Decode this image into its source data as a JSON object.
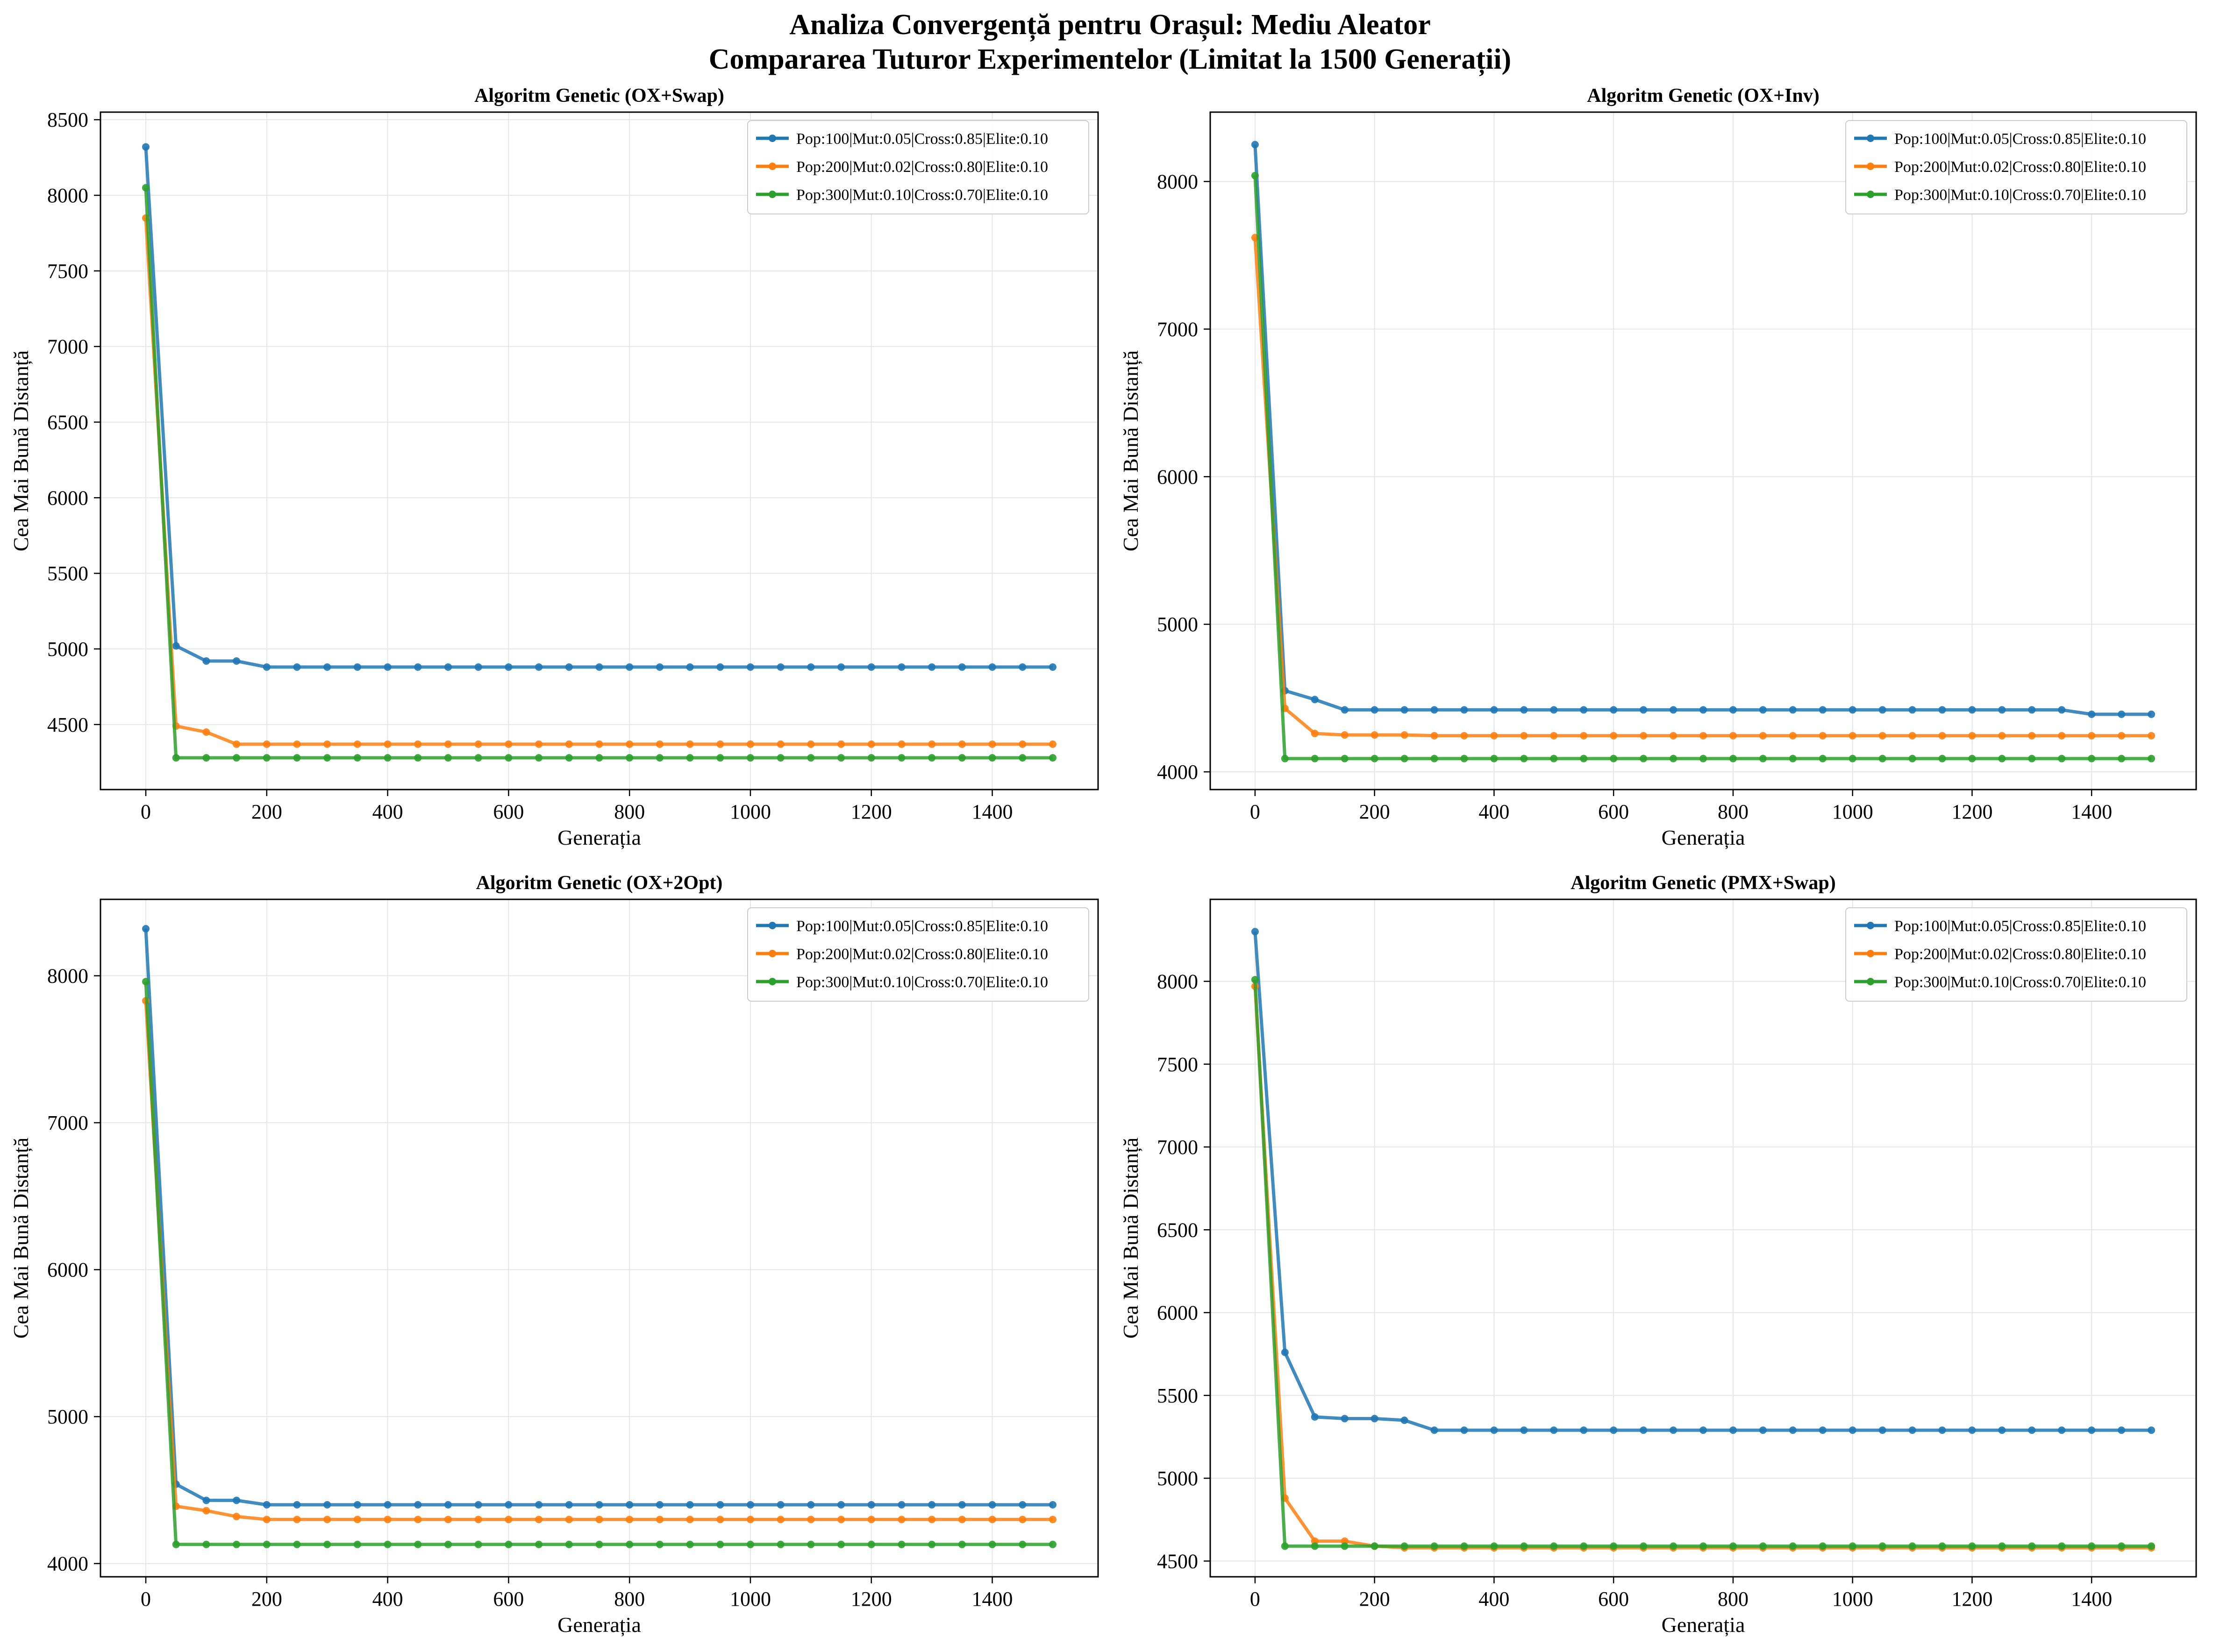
{
  "figure": {
    "title_line1": "Analiza Convergență pentru Orașul: Mediu Aleator",
    "title_line2": "Compararea Tuturor Experimentelor (Limitat la 1500 Generații)"
  },
  "colors": {
    "series": [
      "#1f77b4",
      "#ff7f0e",
      "#2ca02c"
    ],
    "grid": "#e6e6e6",
    "axes": "#000000"
  },
  "chart_data": [
    {
      "type": "line",
      "title": "Algoritm Genetic (OX+Swap)",
      "xlabel": "Generația",
      "ylabel": "Cea Mai Bună Distanță",
      "xlim": [
        -75,
        1575
      ],
      "ylim": [
        4070,
        8550
      ],
      "xticks": [
        0,
        200,
        400,
        600,
        800,
        1000,
        1200,
        1400
      ],
      "yticks": [
        4500,
        5000,
        5500,
        6000,
        6500,
        7000,
        7500,
        8000,
        8500
      ],
      "grid": true,
      "legend_position": "top-right",
      "x": [
        0,
        50,
        100,
        150,
        200,
        250,
        300,
        350,
        400,
        450,
        500,
        550,
        600,
        650,
        700,
        750,
        800,
        850,
        900,
        950,
        1000,
        1050,
        1100,
        1150,
        1200,
        1250,
        1300,
        1350,
        1400,
        1450,
        1500
      ],
      "series": [
        {
          "name": "Pop:100|Mut:0.05|Cross:0.85|Elite:0.10",
          "values": [
            8320,
            5020,
            4920,
            4920,
            4880,
            4880,
            4880,
            4880,
            4880,
            4880,
            4880,
            4880,
            4880,
            4880,
            4880,
            4880,
            4880,
            4880,
            4880,
            4880,
            4880,
            4880,
            4880,
            4880,
            4880,
            4880,
            4880,
            4880,
            4880,
            4880,
            4880
          ]
        },
        {
          "name": "Pop:200|Mut:0.02|Cross:0.80|Elite:0.10",
          "values": [
            7850,
            4490,
            4450,
            4370,
            4370,
            4370,
            4370,
            4370,
            4370,
            4370,
            4370,
            4370,
            4370,
            4370,
            4370,
            4370,
            4370,
            4370,
            4370,
            4370,
            4370,
            4370,
            4370,
            4370,
            4370,
            4370,
            4370,
            4370,
            4370,
            4370,
            4370
          ]
        },
        {
          "name": "Pop:300|Mut:0.10|Cross:0.70|Elite:0.10",
          "values": [
            8050,
            4280,
            4280,
            4280,
            4280,
            4280,
            4280,
            4280,
            4280,
            4280,
            4280,
            4280,
            4280,
            4280,
            4280,
            4280,
            4280,
            4280,
            4280,
            4280,
            4280,
            4280,
            4280,
            4280,
            4280,
            4280,
            4280,
            4280,
            4280,
            4280,
            4280
          ]
        }
      ]
    },
    {
      "type": "line",
      "title": "Algoritm Genetic (OX+Inv)",
      "xlabel": "Generația",
      "ylabel": "Cea Mai Bună Distanță",
      "xlim": [
        -75,
        1575
      ],
      "ylim": [
        3880,
        8470
      ],
      "xticks": [
        0,
        200,
        400,
        600,
        800,
        1000,
        1200,
        1400
      ],
      "yticks": [
        4000,
        5000,
        6000,
        7000,
        8000
      ],
      "grid": true,
      "legend_position": "top-right",
      "x": [
        0,
        50,
        100,
        150,
        200,
        250,
        300,
        350,
        400,
        450,
        500,
        550,
        600,
        650,
        700,
        750,
        800,
        850,
        900,
        950,
        1000,
        1050,
        1100,
        1150,
        1200,
        1250,
        1300,
        1350,
        1400,
        1450,
        1500
      ],
      "series": [
        {
          "name": "Pop:100|Mut:0.05|Cross:0.85|Elite:0.10",
          "values": [
            8250,
            4550,
            4490,
            4420,
            4420,
            4420,
            4420,
            4420,
            4420,
            4420,
            4420,
            4420,
            4420,
            4420,
            4420,
            4420,
            4420,
            4420,
            4420,
            4420,
            4420,
            4420,
            4420,
            4420,
            4420,
            4420,
            4420,
            4420,
            4390,
            4390,
            4390
          ]
        },
        {
          "name": "Pop:200|Mut:0.02|Cross:0.80|Elite:0.10",
          "values": [
            7620,
            4430,
            4260,
            4250,
            4250,
            4250,
            4245,
            4245,
            4245,
            4245,
            4245,
            4245,
            4245,
            4245,
            4245,
            4245,
            4245,
            4245,
            4245,
            4245,
            4245,
            4245,
            4245,
            4245,
            4245,
            4245,
            4245,
            4245,
            4245,
            4245,
            4245
          ]
        },
        {
          "name": "Pop:300|Mut:0.10|Cross:0.70|Elite:0.10",
          "values": [
            8040,
            4090,
            4090,
            4090,
            4090,
            4090,
            4090,
            4090,
            4090,
            4090,
            4090,
            4090,
            4090,
            4090,
            4090,
            4090,
            4090,
            4090,
            4090,
            4090,
            4090,
            4090,
            4090,
            4090,
            4090,
            4090,
            4090,
            4090,
            4090,
            4090,
            4090
          ]
        }
      ]
    },
    {
      "type": "line",
      "title": "Algoritm Genetic (OX+2Opt)",
      "xlabel": "Generația",
      "ylabel": "Cea Mai Bună Distanță",
      "xlim": [
        -75,
        1575
      ],
      "ylim": [
        3910,
        8520
      ],
      "xticks": [
        0,
        200,
        400,
        600,
        800,
        1000,
        1200,
        1400
      ],
      "yticks": [
        4000,
        5000,
        6000,
        7000,
        8000
      ],
      "grid": true,
      "legend_position": "top-right",
      "x": [
        0,
        50,
        100,
        150,
        200,
        250,
        300,
        350,
        400,
        450,
        500,
        550,
        600,
        650,
        700,
        750,
        800,
        850,
        900,
        950,
        1000,
        1050,
        1100,
        1150,
        1200,
        1250,
        1300,
        1350,
        1400,
        1450,
        1500
      ],
      "series": [
        {
          "name": "Pop:100|Mut:0.05|Cross:0.85|Elite:0.10",
          "values": [
            8320,
            4540,
            4430,
            4430,
            4400,
            4400,
            4400,
            4400,
            4400,
            4400,
            4400,
            4400,
            4400,
            4400,
            4400,
            4400,
            4400,
            4400,
            4400,
            4400,
            4400,
            4400,
            4400,
            4400,
            4400,
            4400,
            4400,
            4400,
            4400,
            4400,
            4400
          ]
        },
        {
          "name": "Pop:200|Mut:0.02|Cross:0.80|Elite:0.10",
          "values": [
            7830,
            4390,
            4360,
            4320,
            4300,
            4300,
            4300,
            4300,
            4300,
            4300,
            4300,
            4300,
            4300,
            4300,
            4300,
            4300,
            4300,
            4300,
            4300,
            4300,
            4300,
            4300,
            4300,
            4300,
            4300,
            4300,
            4300,
            4300,
            4300,
            4300,
            4300
          ]
        },
        {
          "name": "Pop:300|Mut:0.10|Cross:0.70|Elite:0.10",
          "values": [
            7960,
            4130,
            4130,
            4130,
            4130,
            4130,
            4130,
            4130,
            4130,
            4130,
            4130,
            4130,
            4130,
            4130,
            4130,
            4130,
            4130,
            4130,
            4130,
            4130,
            4130,
            4130,
            4130,
            4130,
            4130,
            4130,
            4130,
            4130,
            4130,
            4130,
            4130
          ]
        }
      ]
    },
    {
      "type": "line",
      "title": "Algoritm Genetic (PMX+Swap)",
      "xlabel": "Generația",
      "ylabel": "Cea Mai Bună Distanță",
      "xlim": [
        -75,
        1575
      ],
      "ylim": [
        4405,
        8495
      ],
      "xticks": [
        0,
        200,
        400,
        600,
        800,
        1000,
        1200,
        1400
      ],
      "yticks": [
        4500,
        5000,
        5500,
        6000,
        6500,
        7000,
        7500,
        8000
      ],
      "grid": true,
      "legend_position": "top-right",
      "x": [
        0,
        50,
        100,
        150,
        200,
        250,
        300,
        350,
        400,
        450,
        500,
        550,
        600,
        650,
        700,
        750,
        800,
        850,
        900,
        950,
        1000,
        1050,
        1100,
        1150,
        1200,
        1250,
        1300,
        1350,
        1400,
        1450,
        1500
      ],
      "series": [
        {
          "name": "Pop:100|Mut:0.05|Cross:0.85|Elite:0.10",
          "values": [
            8300,
            5760,
            5370,
            5360,
            5360,
            5350,
            5290,
            5290,
            5290,
            5290,
            5290,
            5290,
            5290,
            5290,
            5290,
            5290,
            5290,
            5290,
            5290,
            5290,
            5290,
            5290,
            5290,
            5290,
            5290,
            5290,
            5290,
            5290,
            5290,
            5290,
            5290
          ]
        },
        {
          "name": "Pop:200|Mut:0.02|Cross:0.80|Elite:0.10",
          "values": [
            7970,
            4880,
            4620,
            4620,
            4590,
            4580,
            4580,
            4580,
            4580,
            4580,
            4580,
            4580,
            4580,
            4580,
            4580,
            4580,
            4580,
            4580,
            4580,
            4580,
            4580,
            4580,
            4580,
            4580,
            4580,
            4580,
            4580,
            4580,
            4580,
            4580,
            4580
          ]
        },
        {
          "name": "Pop:300|Mut:0.10|Cross:0.70|Elite:0.10",
          "values": [
            8010,
            4590,
            4590,
            4590,
            4590,
            4590,
            4590,
            4590,
            4590,
            4590,
            4590,
            4590,
            4590,
            4590,
            4590,
            4590,
            4590,
            4590,
            4590,
            4590,
            4590,
            4590,
            4590,
            4590,
            4590,
            4590,
            4590,
            4590,
            4590,
            4590,
            4590
          ]
        }
      ]
    }
  ]
}
